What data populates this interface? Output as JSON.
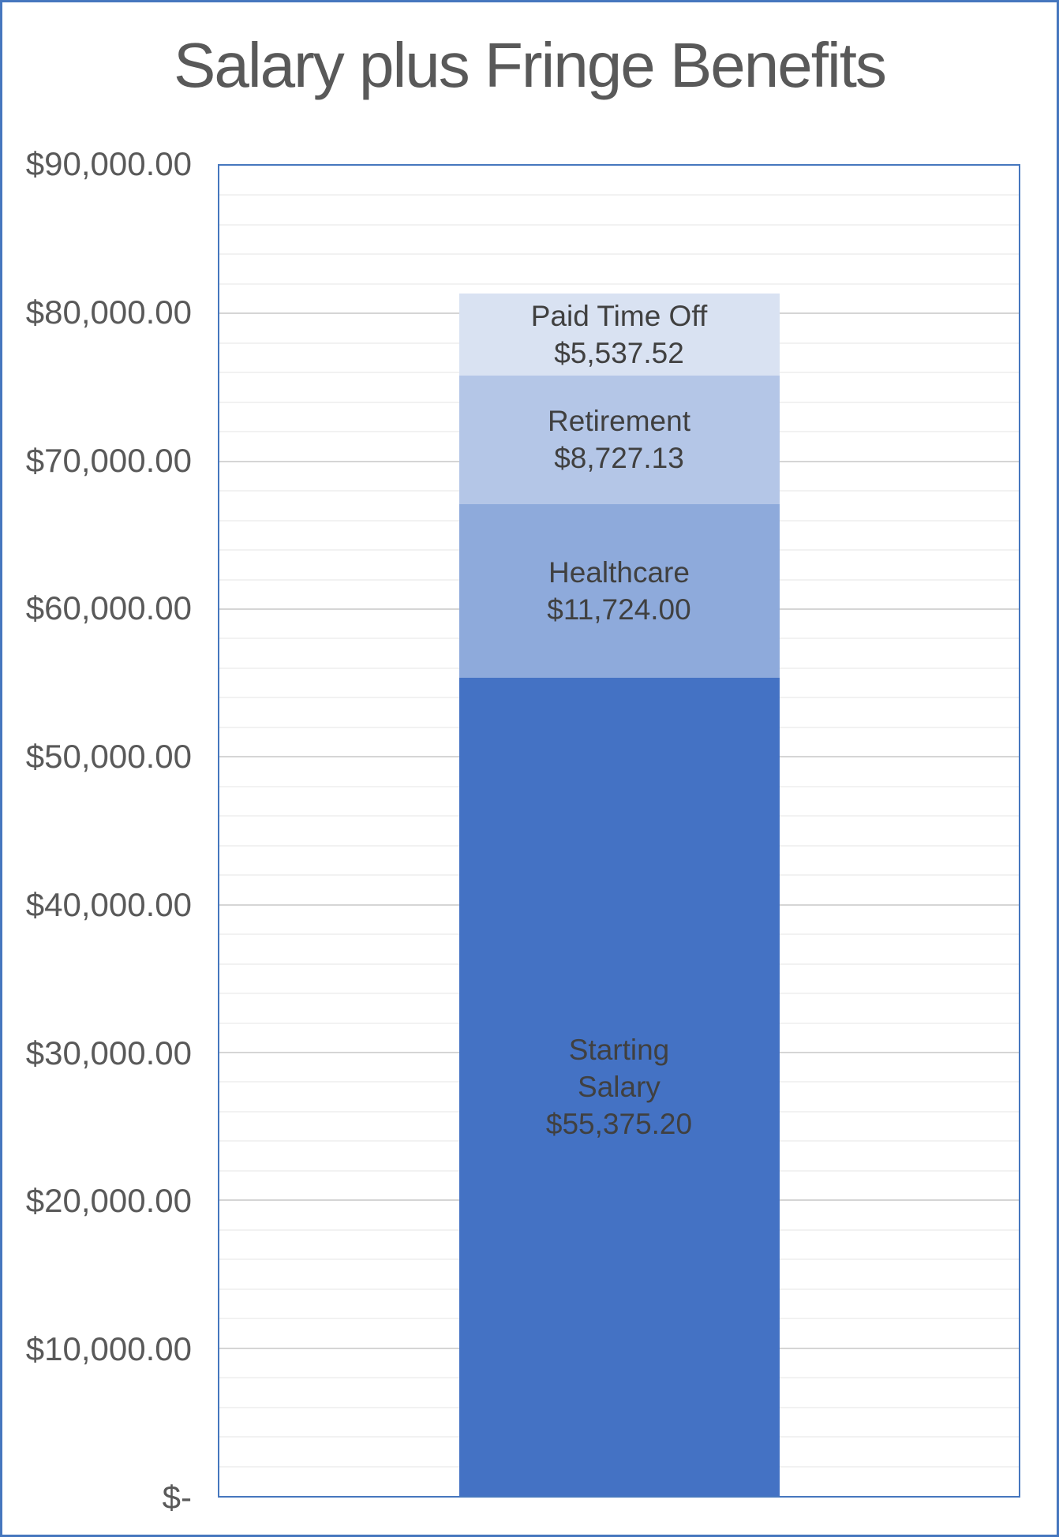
{
  "page": {
    "title": "Salary plus Fringe Benefits"
  },
  "chart_data": {
    "type": "bar",
    "stacked": true,
    "title": "Salary plus Fringe Benefits",
    "ylim": [
      0,
      90000
    ],
    "y_major_step": 10000,
    "y_minor_step": 2000,
    "grid": "horizontal minor + major",
    "legend": false,
    "yticks": [
      {
        "value": 90000,
        "label": "$90,000.00"
      },
      {
        "value": 80000,
        "label": "$80,000.00"
      },
      {
        "value": 70000,
        "label": "$70,000.00"
      },
      {
        "value": 60000,
        "label": "$60,000.00"
      },
      {
        "value": 50000,
        "label": "$50,000.00"
      },
      {
        "value": 40000,
        "label": "$40,000.00"
      },
      {
        "value": 30000,
        "label": "$30,000.00"
      },
      {
        "value": 20000,
        "label": "$20,000.00"
      },
      {
        "value": 10000,
        "label": "$10,000.00"
      },
      {
        "value": 0,
        "label": "$-"
      }
    ],
    "segments": [
      {
        "name": "Starting Salary",
        "name_lines": [
          "Starting",
          "Salary"
        ],
        "value": 55375.2,
        "value_label": "$55,375.20",
        "color": "#4472C4"
      },
      {
        "name": "Healthcare",
        "name_lines": [
          "Healthcare"
        ],
        "value": 11724.0,
        "value_label": "$11,724.00",
        "color": "#8EAADB"
      },
      {
        "name": "Retirement",
        "name_lines": [
          "Retirement"
        ],
        "value": 8727.13,
        "value_label": "$8,727.13",
        "color": "#B4C6E7"
      },
      {
        "name": "Paid Time Off",
        "name_lines": [
          "Paid Time Off"
        ],
        "value": 5537.52,
        "value_label": "$5,537.52",
        "color": "#D9E2F2"
      }
    ],
    "colors": {
      "label_text": "#404040",
      "axis_text": "#595959",
      "border": "#4677BE",
      "grid_minor": "#F2F2F2",
      "grid_major": "#D5D5D5"
    }
  }
}
